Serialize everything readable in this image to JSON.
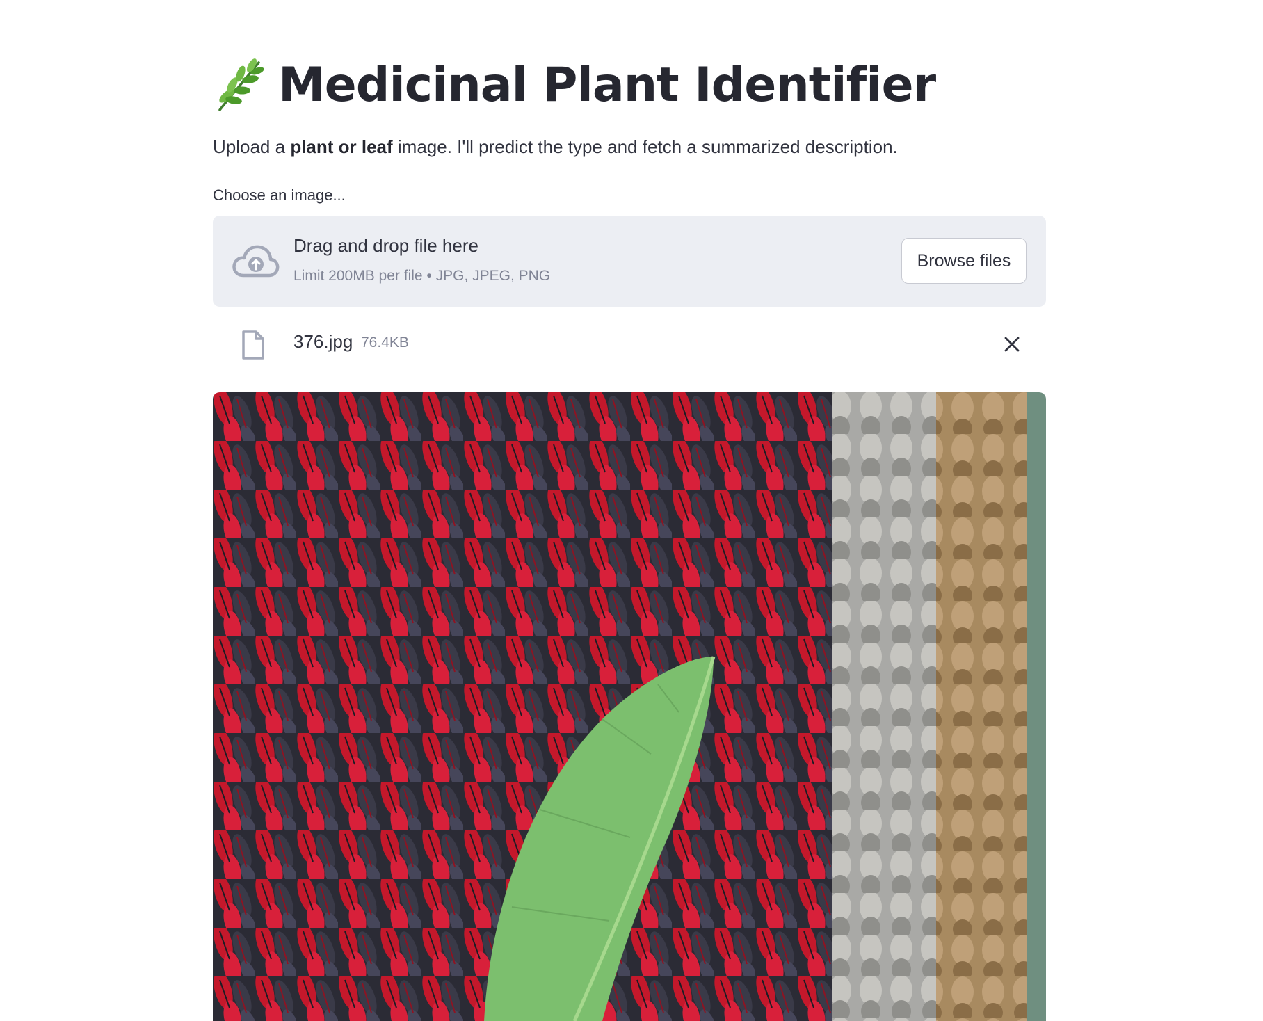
{
  "app": {
    "title": "Medicinal Plant Identifier",
    "title_icon": "herb-icon"
  },
  "intro": {
    "before": "Upload a ",
    "bold": "plant or leaf",
    "after": " image. I'll predict the type and fetch a summarized description."
  },
  "uploader": {
    "label": "Choose an image...",
    "drop_text": "Drag and drop file here",
    "limit_text": "Limit 200MB per file • JPG, JPEG, PNG",
    "browse_label": "Browse files",
    "icon": "cloud-upload-icon"
  },
  "uploaded_file": {
    "name": "376.jpg",
    "size": "76.4KB",
    "icon": "file-icon",
    "remove_icon": "close-icon"
  },
  "preview": {
    "description_icon": "leaf-photo"
  },
  "colors": {
    "text": "#31333f",
    "muted": "#808495",
    "dropzone_bg": "#eceef3",
    "icon_gray": "#a3a8b8"
  }
}
